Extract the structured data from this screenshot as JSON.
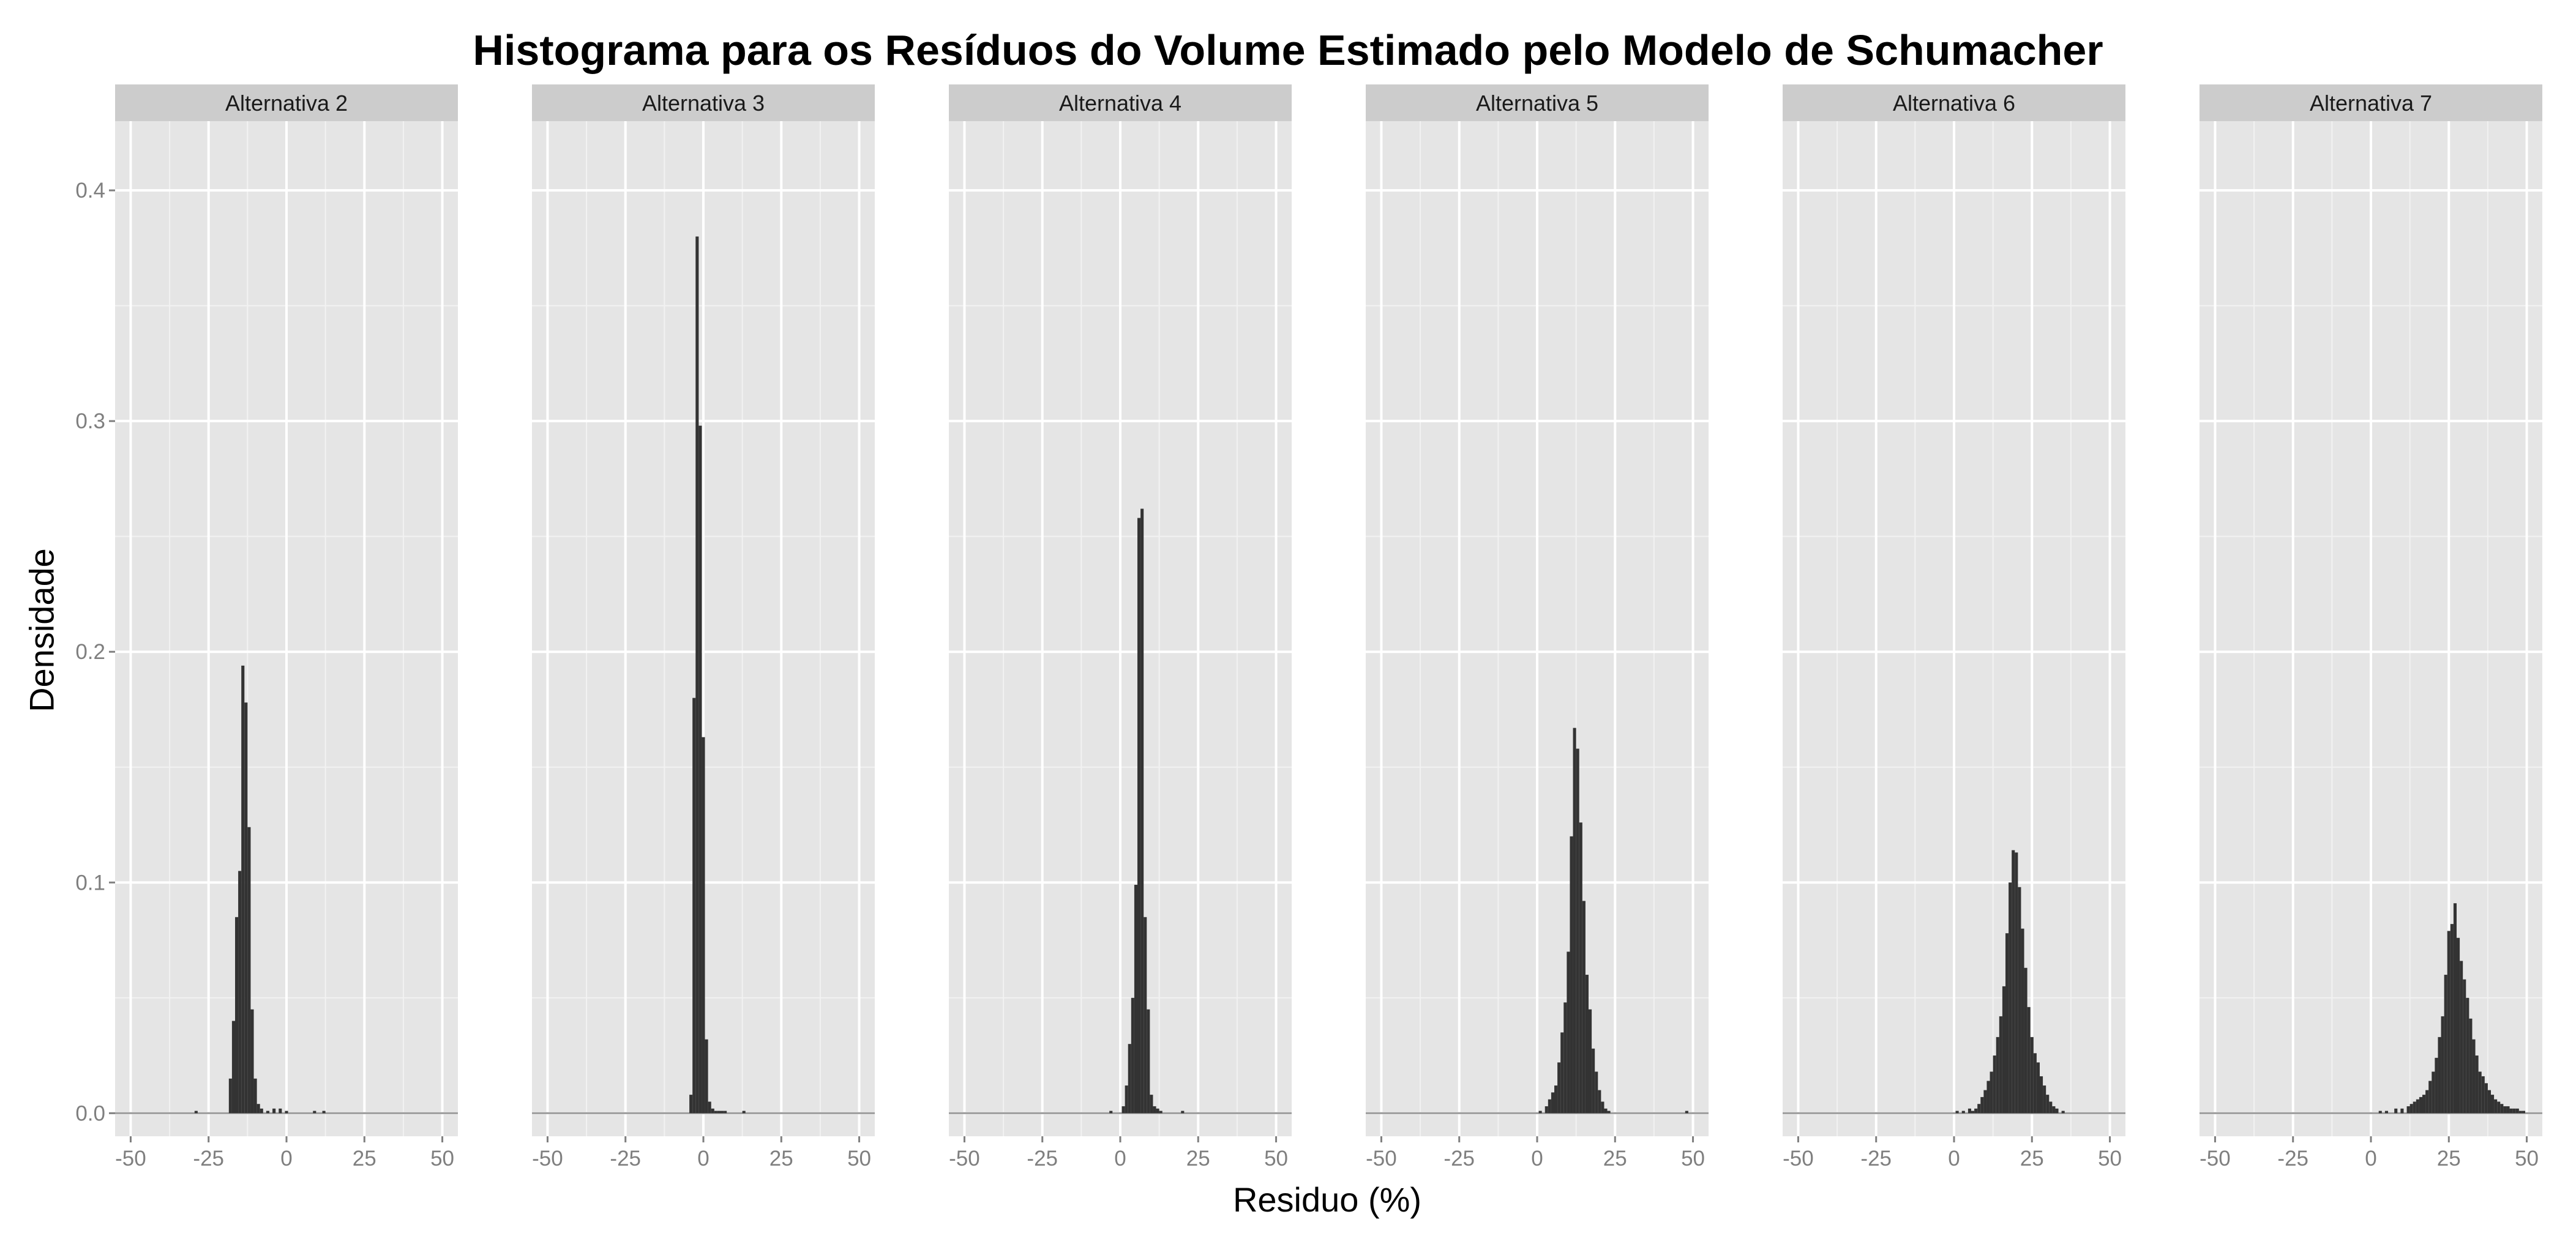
{
  "chart_data": {
    "type": "bar",
    "title": "Histograma para os Resíduos do Volume Estimado pelo Modelo de Schumacher",
    "xlabel": "Residuo (%)",
    "ylabel": "Densidade",
    "xlim": [
      -55,
      55
    ],
    "ylim": [
      -0.01,
      0.43
    ],
    "x_ticks": [
      -50,
      -25,
      0,
      25,
      50
    ],
    "x_tick_labels": [
      "-50",
      "-25",
      "0",
      "25",
      "50"
    ],
    "y_ticks": [
      0.0,
      0.1,
      0.2,
      0.3,
      0.4
    ],
    "y_tick_labels": [
      "0.0",
      "0.1",
      "0.2",
      "0.3",
      "0.4"
    ],
    "grid": true,
    "bin_width": 1,
    "colors": {
      "bar": "#333333",
      "panel_background": "#e5e5e5",
      "grid_major": "#ffffff",
      "grid_minor": "#f2f2f2",
      "strip_background": "#cccccc",
      "baseline": "#999999"
    },
    "panels": [
      {
        "label": "Alternativa 2",
        "bins": [
          [
            -29,
            0.001
          ],
          [
            -18,
            0.015
          ],
          [
            -17,
            0.04
          ],
          [
            -16,
            0.085
          ],
          [
            -15,
            0.105
          ],
          [
            -14,
            0.194
          ],
          [
            -13,
            0.178
          ],
          [
            -12,
            0.124
          ],
          [
            -11,
            0.045
          ],
          [
            -10,
            0.015
          ],
          [
            -9,
            0.004
          ],
          [
            -8,
            0.002
          ],
          [
            -6,
            0.001
          ],
          [
            -4,
            0.002
          ],
          [
            -2,
            0.002
          ],
          [
            0,
            0.001
          ],
          [
            9,
            0.001
          ],
          [
            12,
            0.001
          ]
        ]
      },
      {
        "label": "Alternativa 3",
        "bins": [
          [
            -4,
            0.008
          ],
          [
            -3,
            0.18
          ],
          [
            -2,
            0.38
          ],
          [
            -1,
            0.298
          ],
          [
            0,
            0.163
          ],
          [
            1,
            0.032
          ],
          [
            2,
            0.005
          ],
          [
            3,
            0.002
          ],
          [
            4,
            0.001
          ],
          [
            5,
            0.001
          ],
          [
            6,
            0.001
          ],
          [
            7,
            0.001
          ],
          [
            13,
            0.001
          ]
        ]
      },
      {
        "label": "Alternativa 4",
        "bins": [
          [
            -3,
            0.001
          ],
          [
            1,
            0.003
          ],
          [
            2,
            0.012
          ],
          [
            3,
            0.03
          ],
          [
            4,
            0.05
          ],
          [
            5,
            0.099
          ],
          [
            6,
            0.258
          ],
          [
            7,
            0.262
          ],
          [
            8,
            0.085
          ],
          [
            9,
            0.045
          ],
          [
            10,
            0.008
          ],
          [
            11,
            0.003
          ],
          [
            12,
            0.002
          ],
          [
            13,
            0.001
          ],
          [
            20,
            0.001
          ]
        ]
      },
      {
        "label": "Alternativa 5",
        "bins": [
          [
            1,
            0.001
          ],
          [
            3,
            0.003
          ],
          [
            4,
            0.006
          ],
          [
            5,
            0.009
          ],
          [
            6,
            0.012
          ],
          [
            7,
            0.022
          ],
          [
            8,
            0.035
          ],
          [
            9,
            0.048
          ],
          [
            10,
            0.07
          ],
          [
            11,
            0.12
          ],
          [
            12,
            0.167
          ],
          [
            13,
            0.158
          ],
          [
            14,
            0.126
          ],
          [
            15,
            0.092
          ],
          [
            16,
            0.06
          ],
          [
            17,
            0.045
          ],
          [
            18,
            0.028
          ],
          [
            19,
            0.018
          ],
          [
            20,
            0.01
          ],
          [
            21,
            0.005
          ],
          [
            22,
            0.002
          ],
          [
            23,
            0.001
          ],
          [
            48,
            0.001
          ]
        ]
      },
      {
        "label": "Alternativa 6",
        "bins": [
          [
            1,
            0.001
          ],
          [
            3,
            0.001
          ],
          [
            5,
            0.002
          ],
          [
            6,
            0.001
          ],
          [
            7,
            0.002
          ],
          [
            8,
            0.004
          ],
          [
            9,
            0.007
          ],
          [
            10,
            0.01
          ],
          [
            11,
            0.014
          ],
          [
            12,
            0.018
          ],
          [
            13,
            0.025
          ],
          [
            14,
            0.033
          ],
          [
            15,
            0.042
          ],
          [
            16,
            0.055
          ],
          [
            17,
            0.078
          ],
          [
            18,
            0.1
          ],
          [
            19,
            0.114
          ],
          [
            20,
            0.113
          ],
          [
            21,
            0.098
          ],
          [
            22,
            0.08
          ],
          [
            23,
            0.063
          ],
          [
            24,
            0.046
          ],
          [
            25,
            0.033
          ],
          [
            26,
            0.026
          ],
          [
            27,
            0.022
          ],
          [
            28,
            0.016
          ],
          [
            29,
            0.012
          ],
          [
            30,
            0.008
          ],
          [
            31,
            0.005
          ],
          [
            32,
            0.003
          ],
          [
            33,
            0.002
          ],
          [
            35,
            0.001
          ]
        ]
      },
      {
        "label": "Alternativa 7",
        "bins": [
          [
            3,
            0.001
          ],
          [
            5,
            0.001
          ],
          [
            8,
            0.002
          ],
          [
            10,
            0.002
          ],
          [
            12,
            0.003
          ],
          [
            13,
            0.004
          ],
          [
            14,
            0.005
          ],
          [
            15,
            0.006
          ],
          [
            16,
            0.007
          ],
          [
            17,
            0.008
          ],
          [
            18,
            0.01
          ],
          [
            19,
            0.014
          ],
          [
            20,
            0.018
          ],
          [
            21,
            0.024
          ],
          [
            22,
            0.033
          ],
          [
            23,
            0.042
          ],
          [
            24,
            0.06
          ],
          [
            25,
            0.079
          ],
          [
            26,
            0.082
          ],
          [
            27,
            0.091
          ],
          [
            28,
            0.076
          ],
          [
            29,
            0.066
          ],
          [
            30,
            0.058
          ],
          [
            31,
            0.05
          ],
          [
            32,
            0.041
          ],
          [
            33,
            0.032
          ],
          [
            34,
            0.025
          ],
          [
            35,
            0.018
          ],
          [
            36,
            0.016
          ],
          [
            37,
            0.013
          ],
          [
            38,
            0.01
          ],
          [
            39,
            0.008
          ],
          [
            40,
            0.006
          ],
          [
            41,
            0.005
          ],
          [
            42,
            0.004
          ],
          [
            43,
            0.003
          ],
          [
            44,
            0.003
          ],
          [
            45,
            0.002
          ],
          [
            46,
            0.002
          ],
          [
            47,
            0.002
          ],
          [
            48,
            0.001
          ],
          [
            49,
            0.001
          ]
        ]
      }
    ]
  }
}
